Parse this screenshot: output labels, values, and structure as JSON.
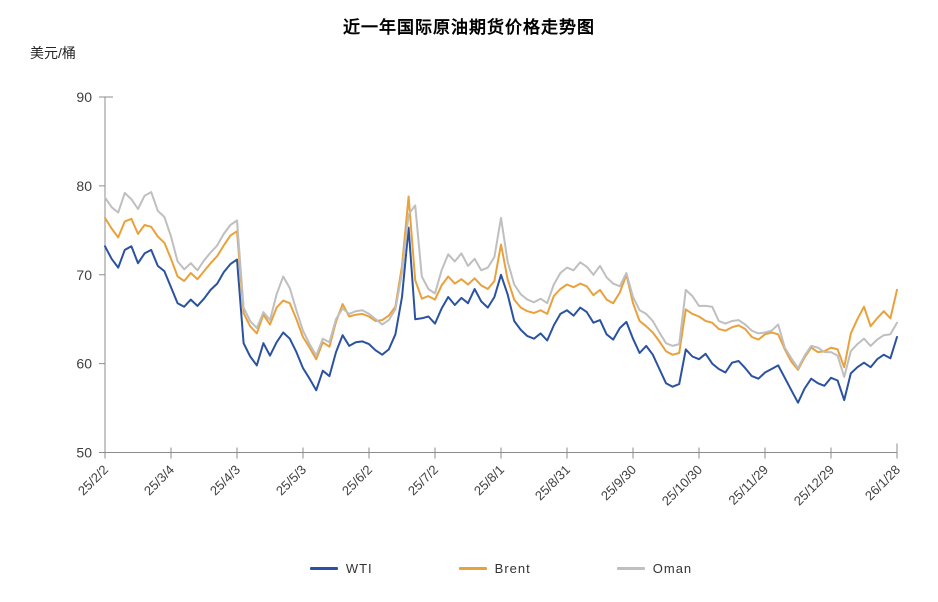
{
  "chart_data": {
    "type": "line",
    "title": "近一年国际原油期货价格走势图",
    "ylabel": "美元/桶",
    "xlabel": "",
    "ylim": [
      50,
      90
    ],
    "y_ticks": [
      50,
      60,
      70,
      80,
      90
    ],
    "x_tick_labels": [
      "25/2/2",
      "25/3/4",
      "25/4/3",
      "25/5/3",
      "25/6/2",
      "25/7/2",
      "25/8/1",
      "25/8/31",
      "25/9/30",
      "25/10/30",
      "25/11/29",
      "25/12/29",
      "26/1/28"
    ],
    "x_range_days": [
      0,
      360
    ],
    "x_sample_interval_days": 3,
    "grid": false,
    "legend_position": "bottom",
    "axis_color": "#8C8C8C",
    "text_color": "#404040",
    "line_width": 2,
    "series": [
      {
        "name": "WTI",
        "color": "#2A52A0",
        "values": [
          73.2,
          71.8,
          70.8,
          72.8,
          73.2,
          71.3,
          72.4,
          72.8,
          71.0,
          70.4,
          68.6,
          66.8,
          66.4,
          67.2,
          66.5,
          67.3,
          68.3,
          69.0,
          70.3,
          71.2,
          71.7,
          62.3,
          60.8,
          59.8,
          62.3,
          60.9,
          62.4,
          63.5,
          62.8,
          61.3,
          59.5,
          58.3,
          57.0,
          59.2,
          58.6,
          61.3,
          63.2,
          62.0,
          62.4,
          62.5,
          62.2,
          61.5,
          61.0,
          61.6,
          63.3,
          67.5,
          75.3,
          65.0,
          65.1,
          65.3,
          64.5,
          66.2,
          67.5,
          66.6,
          67.4,
          66.8,
          68.4,
          67.0,
          66.3,
          67.5,
          70.0,
          67.8,
          64.8,
          63.8,
          63.1,
          62.8,
          63.4,
          62.6,
          64.3,
          65.6,
          66.0,
          65.4,
          66.3,
          65.8,
          64.6,
          64.9,
          63.3,
          62.7,
          64.0,
          64.7,
          62.8,
          61.2,
          62.0,
          61.0,
          59.4,
          57.8,
          57.4,
          57.7,
          61.6,
          60.8,
          60.5,
          61.1,
          60.0,
          59.4,
          59.0,
          60.1,
          60.3,
          59.5,
          58.6,
          58.3,
          59.0,
          59.4,
          59.8,
          58.4,
          57.0,
          55.6,
          57.2,
          58.3,
          57.8,
          57.5,
          58.4,
          58.1,
          55.9,
          58.9,
          59.6,
          60.1,
          59.6,
          60.5,
          61.0,
          60.6,
          63.0
        ]
      },
      {
        "name": "Brent",
        "color": "#E9A13B",
        "values": [
          76.4,
          75.2,
          74.2,
          76.0,
          76.3,
          74.6,
          75.6,
          75.4,
          74.3,
          73.6,
          71.8,
          69.8,
          69.3,
          70.2,
          69.5,
          70.4,
          71.3,
          72.1,
          73.3,
          74.4,
          74.9,
          65.7,
          64.2,
          63.4,
          65.5,
          64.4,
          66.3,
          67.1,
          66.8,
          65.0,
          63.0,
          61.8,
          60.5,
          62.4,
          61.9,
          64.7,
          66.7,
          65.3,
          65.5,
          65.6,
          65.3,
          64.8,
          64.9,
          65.4,
          66.4,
          71.0,
          78.8,
          69.4,
          67.3,
          67.6,
          67.2,
          68.8,
          69.8,
          69.0,
          69.5,
          68.9,
          69.6,
          68.8,
          68.4,
          69.3,
          73.4,
          69.5,
          67.2,
          66.3,
          65.9,
          65.7,
          66.0,
          65.6,
          67.6,
          68.4,
          68.9,
          68.6,
          69.0,
          68.7,
          67.7,
          68.3,
          67.2,
          66.8,
          68.0,
          70.0,
          66.8,
          64.8,
          64.2,
          63.5,
          62.5,
          61.4,
          61.0,
          61.2,
          66.1,
          65.6,
          65.3,
          64.8,
          64.6,
          63.9,
          63.7,
          64.1,
          64.3,
          63.9,
          63.0,
          62.7,
          63.3,
          63.5,
          63.3,
          61.6,
          60.2,
          59.3,
          60.7,
          61.8,
          61.3,
          61.4,
          61.8,
          61.6,
          59.6,
          63.4,
          65.0,
          66.4,
          64.2,
          65.1,
          65.9,
          65.1,
          68.3
        ]
      },
      {
        "name": "Oman",
        "color": "#BFBFBF",
        "values": [
          78.7,
          77.6,
          77.0,
          79.2,
          78.5,
          77.4,
          78.9,
          79.3,
          77.2,
          76.5,
          74.3,
          71.5,
          70.6,
          71.3,
          70.5,
          71.6,
          72.5,
          73.3,
          74.6,
          75.6,
          76.1,
          66.3,
          64.8,
          64.0,
          65.8,
          64.9,
          67.8,
          69.8,
          68.5,
          66.0,
          63.7,
          62.2,
          60.9,
          62.8,
          62.4,
          65.0,
          66.2,
          65.6,
          65.9,
          66.0,
          65.6,
          65.0,
          64.4,
          64.9,
          66.1,
          70.2,
          76.8,
          77.8,
          69.8,
          68.4,
          67.9,
          70.5,
          72.3,
          71.5,
          72.4,
          71.0,
          71.8,
          70.5,
          70.8,
          72.0,
          76.4,
          71.5,
          68.9,
          67.8,
          67.2,
          66.9,
          67.3,
          66.8,
          68.9,
          70.2,
          70.8,
          70.5,
          71.4,
          70.9,
          70.0,
          71.0,
          69.7,
          69.0,
          68.7,
          70.2,
          67.5,
          66.0,
          65.6,
          64.8,
          63.5,
          62.3,
          62.0,
          62.2,
          68.3,
          67.6,
          66.5,
          66.5,
          66.4,
          64.8,
          64.5,
          64.8,
          64.9,
          64.4,
          63.7,
          63.4,
          63.5,
          63.7,
          64.4,
          61.8,
          60.6,
          59.5,
          60.9,
          62.0,
          61.8,
          61.3,
          61.3,
          60.9,
          58.5,
          61.4,
          62.2,
          62.8,
          62.0,
          62.7,
          63.2,
          63.3,
          64.6
        ]
      }
    ]
  }
}
